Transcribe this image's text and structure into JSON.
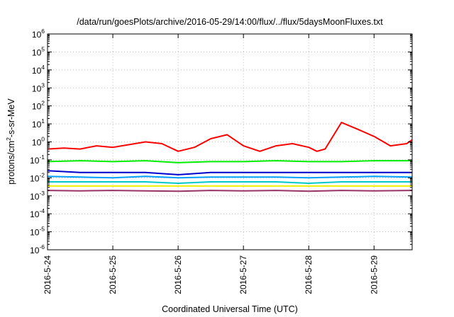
{
  "chart_data": {
    "type": "line",
    "title": "/data/run/goesPlots/archive/2016-05-29/14:00/flux/../flux/5daysMoonFluxes.txt",
    "xlabel": "Coordinated Universal Time (UTC)",
    "ylabel_parts": [
      "protons/cm",
      "2",
      "-s-sr-MeV"
    ],
    "y_scale": "log",
    "ylim": [
      1e-06,
      1000000.0
    ],
    "y_ticks": [
      {
        "base": "10",
        "exp": "-6",
        "value": 1e-06
      },
      {
        "base": "10",
        "exp": "-5",
        "value": 1e-05
      },
      {
        "base": "10",
        "exp": "-4",
        "value": 0.0001
      },
      {
        "base": "10",
        "exp": "-3",
        "value": 0.001
      },
      {
        "base": "10",
        "exp": "-2",
        "value": 0.01
      },
      {
        "base": "10",
        "exp": "-1",
        "value": 0.1
      },
      {
        "base": "10",
        "exp": "0",
        "value": 1.0
      },
      {
        "base": "10",
        "exp": "1",
        "value": 10.0
      },
      {
        "base": "10",
        "exp": "2",
        "value": 100.0
      },
      {
        "base": "10",
        "exp": "3",
        "value": 1000.0
      },
      {
        "base": "10",
        "exp": "4",
        "value": 10000.0
      },
      {
        "base": "10",
        "exp": "5",
        "value": 100000.0
      },
      {
        "base": "10",
        "exp": "6",
        "value": 1000000.0
      }
    ],
    "xlim": [
      "2016-05-24T00:00",
      "2016-05-29T14:00"
    ],
    "x_ticks": [
      {
        "label": "2016-5-24",
        "value": "2016-05-24T00:00"
      },
      {
        "label": "2016-5-25",
        "value": "2016-05-25T00:00"
      },
      {
        "label": "2016-5-26",
        "value": "2016-05-26T00:00"
      },
      {
        "label": "2016-5-27",
        "value": "2016-05-27T00:00"
      },
      {
        "label": "2016-5-28",
        "value": "2016-05-28T00:00"
      },
      {
        "label": "2016-5-29",
        "value": "2016-05-29T00:00"
      }
    ],
    "grid": true,
    "legend": "none",
    "series": [
      {
        "color": "#ff0000",
        "x": [
          "2016-05-24T00:00",
          "2016-05-24T06:00",
          "2016-05-24T12:00",
          "2016-05-24T18:00",
          "2016-05-25T00:00",
          "2016-05-25T06:00",
          "2016-05-25T12:00",
          "2016-05-25T18:00",
          "2016-05-26T00:00",
          "2016-05-26T06:00",
          "2016-05-26T12:00",
          "2016-05-26T18:00",
          "2016-05-27T00:00",
          "2016-05-27T06:00",
          "2016-05-27T12:00",
          "2016-05-27T18:00",
          "2016-05-28T00:00",
          "2016-05-28T03:00",
          "2016-05-28T06:00",
          "2016-05-28T12:00",
          "2016-05-28T18:00",
          "2016-05-29T00:00",
          "2016-05-29T06:00",
          "2016-05-29T12:00",
          "2016-05-29T14:00"
        ],
        "values": [
          0.4,
          0.45,
          0.4,
          0.6,
          0.5,
          0.7,
          1.0,
          0.8,
          0.3,
          0.5,
          1.5,
          2.5,
          0.6,
          0.3,
          0.6,
          0.8,
          0.5,
          0.3,
          0.4,
          12,
          5,
          2,
          0.6,
          0.8,
          1.3
        ]
      },
      {
        "color": "#00ee00",
        "x": [
          "2016-05-24T00:00",
          "2016-05-24T12:00",
          "2016-05-25T00:00",
          "2016-05-25T12:00",
          "2016-05-26T00:00",
          "2016-05-26T12:00",
          "2016-05-27T00:00",
          "2016-05-27T12:00",
          "2016-05-28T00:00",
          "2016-05-28T12:00",
          "2016-05-29T00:00",
          "2016-05-29T14:00"
        ],
        "values": [
          0.08,
          0.09,
          0.08,
          0.09,
          0.07,
          0.08,
          0.08,
          0.09,
          0.08,
          0.08,
          0.09,
          0.09
        ]
      },
      {
        "color": "#0000cc",
        "x": [
          "2016-05-24T00:00",
          "2016-05-24T12:00",
          "2016-05-25T00:00",
          "2016-05-25T12:00",
          "2016-05-26T00:00",
          "2016-05-26T12:00",
          "2016-05-27T00:00",
          "2016-05-27T12:00",
          "2016-05-28T00:00",
          "2016-05-28T12:00",
          "2016-05-29T00:00",
          "2016-05-29T14:00"
        ],
        "values": [
          0.025,
          0.02,
          0.02,
          0.02,
          0.015,
          0.02,
          0.02,
          0.02,
          0.02,
          0.02,
          0.02,
          0.02
        ]
      },
      {
        "color": "#00a0ff",
        "x": [
          "2016-05-24T00:00",
          "2016-05-24T12:00",
          "2016-05-25T00:00",
          "2016-05-25T12:00",
          "2016-05-26T00:00",
          "2016-05-26T12:00",
          "2016-05-27T00:00",
          "2016-05-27T12:00",
          "2016-05-28T00:00",
          "2016-05-28T12:00",
          "2016-05-29T00:00",
          "2016-05-29T14:00"
        ],
        "values": [
          0.012,
          0.011,
          0.01,
          0.012,
          0.01,
          0.011,
          0.011,
          0.011,
          0.01,
          0.011,
          0.012,
          0.011
        ]
      },
      {
        "color": "#00c8c8",
        "x": [
          "2016-05-24T00:00",
          "2016-05-24T12:00",
          "2016-05-25T00:00",
          "2016-05-25T12:00",
          "2016-05-26T00:00",
          "2016-05-26T12:00",
          "2016-05-27T00:00",
          "2016-05-27T12:00",
          "2016-05-28T00:00",
          "2016-05-28T12:00",
          "2016-05-29T00:00",
          "2016-05-29T14:00"
        ],
        "values": [
          0.006,
          0.006,
          0.006,
          0.006,
          0.005,
          0.006,
          0.006,
          0.006,
          0.005,
          0.006,
          0.006,
          0.006
        ]
      },
      {
        "color": "#f0f000",
        "x": [
          "2016-05-24T00:00",
          "2016-05-25T00:00",
          "2016-05-26T00:00",
          "2016-05-27T00:00",
          "2016-05-28T00:00",
          "2016-05-29T00:00",
          "2016-05-29T14:00"
        ],
        "values": [
          0.0035,
          0.0035,
          0.0035,
          0.0035,
          0.0035,
          0.0035,
          0.0035
        ]
      },
      {
        "color": "#993366",
        "x": [
          "2016-05-24T00:00",
          "2016-05-24T12:00",
          "2016-05-25T00:00",
          "2016-05-25T12:00",
          "2016-05-26T00:00",
          "2016-05-26T12:00",
          "2016-05-27T00:00",
          "2016-05-27T12:00",
          "2016-05-28T00:00",
          "2016-05-28T12:00",
          "2016-05-29T00:00",
          "2016-05-29T14:00"
        ],
        "values": [
          0.002,
          0.0019,
          0.002,
          0.0019,
          0.0018,
          0.002,
          0.0019,
          0.002,
          0.0018,
          0.002,
          0.0019,
          0.002
        ]
      }
    ]
  }
}
